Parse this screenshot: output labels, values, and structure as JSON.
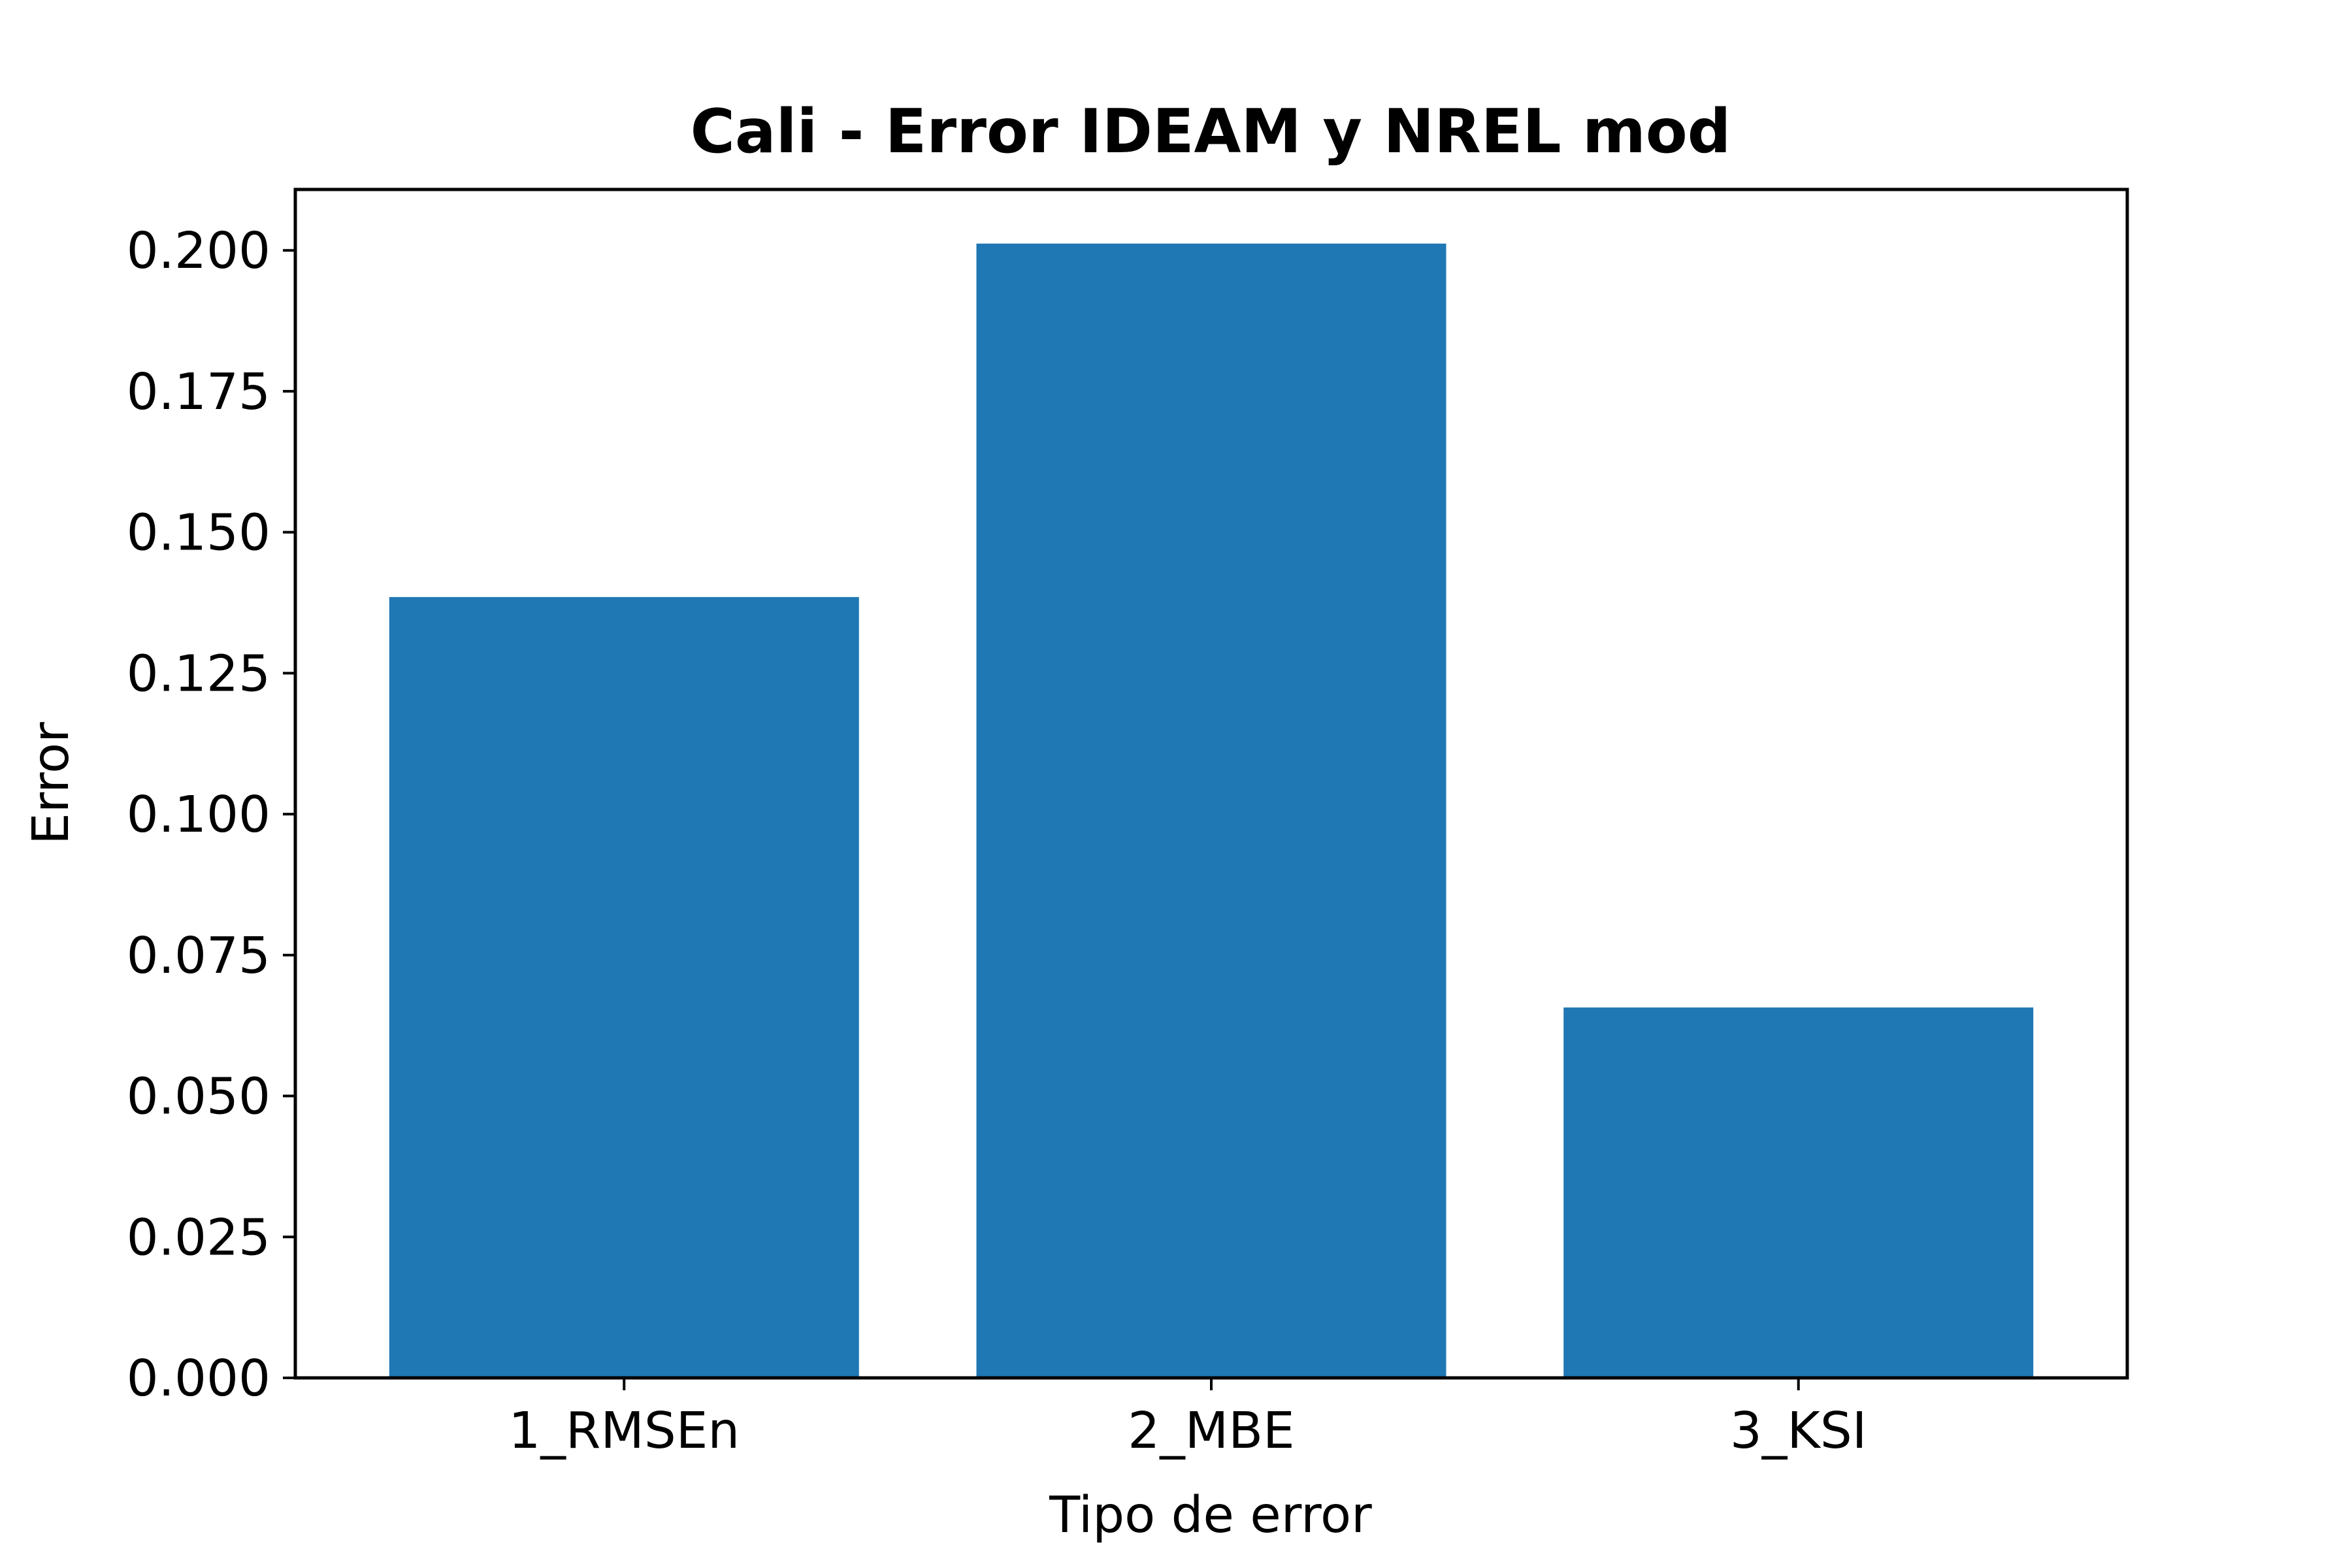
{
  "chart_data": {
    "type": "bar",
    "title": "Cali - Error IDEAM y NREL mod",
    "xlabel": "Tipo de error",
    "ylabel": "Error",
    "categories": [
      "1_RMSEn",
      "2_MBE",
      "3_KSI"
    ],
    "values": [
      0.1385,
      0.2012,
      0.0657
    ],
    "ylim": [
      0,
      0.2108
    ],
    "yticks": [
      "0.000",
      "0.025",
      "0.050",
      "0.075",
      "0.100",
      "0.125",
      "0.150",
      "0.175",
      "0.200"
    ],
    "bar_color": "#1f77b4",
    "grid": false,
    "legend": "none"
  }
}
